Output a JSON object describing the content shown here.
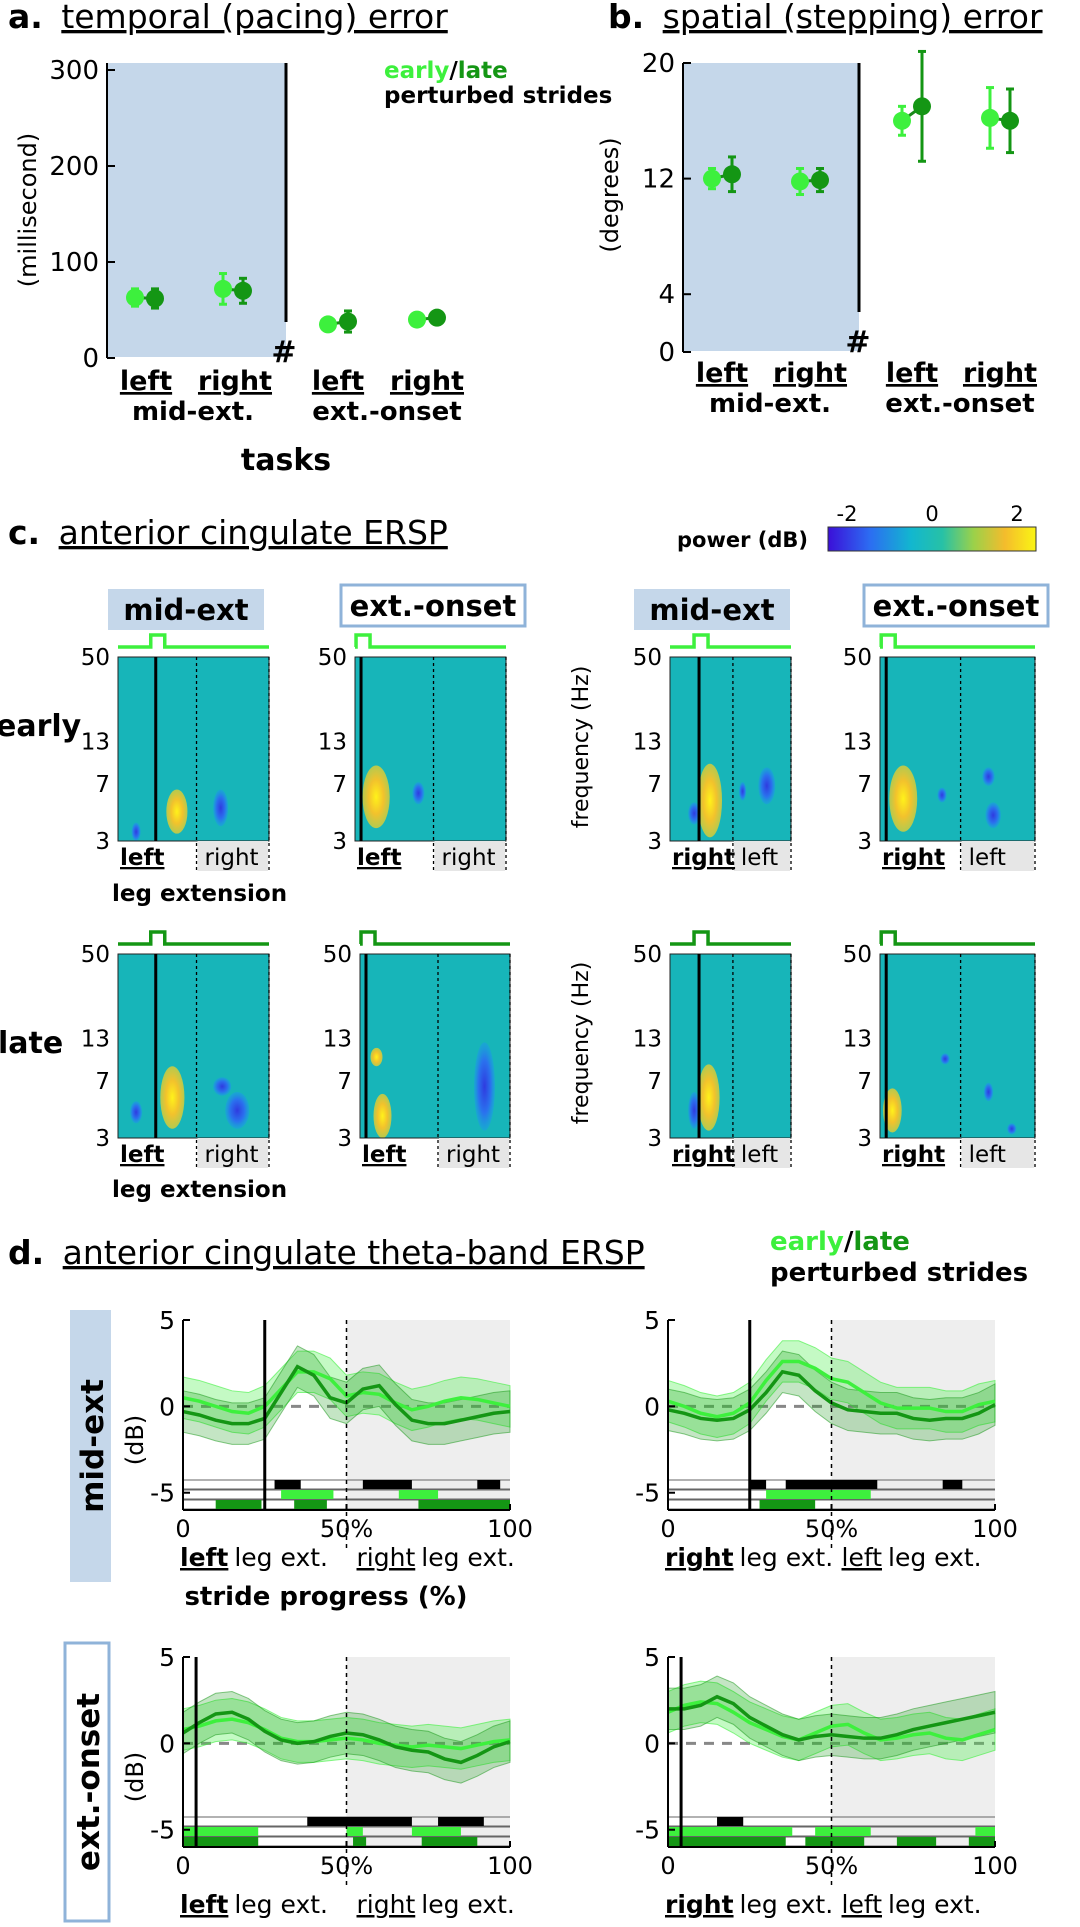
{
  "colors": {
    "early": "#3df03d",
    "late": "#149614",
    "panel_bg": "#c5d7ea",
    "box_border": "#8fb3d9",
    "gray_region": "#ececec",
    "black": "#000000"
  },
  "panel_a": {
    "label": "a.",
    "title": "temporal (pacing) error",
    "ylabel": "(millisecond)",
    "ylim": [
      0,
      300
    ],
    "yticks": [
      "0",
      "100",
      "200",
      "300"
    ],
    "xlabel": "tasks",
    "legend_early": "early",
    "legend_slash": "/",
    "legend_late": "late",
    "legend_sub": "perturbed strides",
    "hash": "#",
    "cond1": "mid-ext.",
    "cond2": "ext.-onset",
    "leg_left": "left",
    "leg_right": "right"
  },
  "panel_b": {
    "label": "b.",
    "title": "spatial (stepping) error",
    "ylabel": "(degrees)",
    "ylim": [
      0,
      20
    ],
    "yticks": [
      "0",
      "4",
      "12",
      "20"
    ],
    "hash": "#",
    "cond1": "mid-ext.",
    "cond2": "ext.-onset",
    "leg_left": "left",
    "leg_right": "right"
  },
  "panel_c": {
    "label": "c.",
    "title": "anterior cingulate ERSP",
    "colorbar_label": "power (dB)",
    "colorbar_ticks": [
      "-2",
      "0",
      "2"
    ],
    "col_mid": "mid-ext",
    "col_ext": "ext.-onset",
    "row_early": "early",
    "row_late": "late",
    "freq_label": "frequency (Hz)",
    "freq_ticks": [
      "50",
      "13",
      "7",
      "3"
    ],
    "left": "left",
    "right": "right",
    "leg_extension": "leg extension"
  },
  "panel_d": {
    "label": "d.",
    "title": "anterior cingulate theta-band ERSP",
    "legend_early": "early",
    "legend_slash": "/",
    "legend_late": "late",
    "legend_sub": "perturbed strides",
    "row_mid": "mid-ext",
    "row_ext": "ext.-onset",
    "ylabel": "(dB)",
    "yticks": [
      "5",
      "0",
      "-5"
    ],
    "xticks": [
      "0",
      "50%",
      "100"
    ],
    "xlabel": "stride progress (%)",
    "left": "left",
    "right": "right",
    "leg_ext": "leg ext."
  },
  "chart_data": [
    {
      "type": "scatter",
      "panel": "a",
      "title": "temporal (pacing) error",
      "ylabel": "(millisecond)",
      "xlabel": "tasks",
      "ylim": [
        0,
        300
      ],
      "categories": [
        "left mid-ext.",
        "right mid-ext.",
        "left ext.-onset",
        "right ext.-onset"
      ],
      "series": [
        {
          "name": "early",
          "values": [
            63,
            72,
            35,
            40
          ],
          "errors": [
            9,
            16,
            6,
            4
          ]
        },
        {
          "name": "late",
          "values": [
            62,
            70,
            38,
            42
          ],
          "errors": [
            10,
            13,
            11,
            5
          ]
        }
      ]
    },
    {
      "type": "scatter",
      "panel": "b",
      "title": "spatial (stepping) error",
      "ylabel": "(degrees)",
      "ylim": [
        0,
        20
      ],
      "categories": [
        "left mid-ext.",
        "right mid-ext.",
        "left ext.-onset",
        "right ext.-onset"
      ],
      "series": [
        {
          "name": "early",
          "values": [
            12.0,
            11.8,
            16.0,
            16.2
          ],
          "errors": [
            0.7,
            0.9,
            1.0,
            2.1
          ]
        },
        {
          "name": "late",
          "values": [
            12.3,
            11.9,
            17.0,
            16.0
          ],
          "errors": [
            1.2,
            0.8,
            3.8,
            2.2
          ]
        }
      ]
    },
    {
      "type": "heatmap",
      "panel": "c",
      "title": "anterior cingulate ERSP",
      "colorbar_range": [
        -2.5,
        2.5
      ],
      "frequency_ticks_hz": [
        3,
        7,
        13,
        50
      ]
    },
    {
      "type": "line",
      "panel": "d",
      "title": "anterior cingulate theta-band ERSP",
      "xlabel": "stride progress (%)",
      "ylabel": "(dB)",
      "ylim": [
        -6,
        5
      ],
      "x": [
        0,
        5,
        10,
        15,
        20,
        25,
        30,
        35,
        40,
        45,
        50,
        55,
        60,
        65,
        70,
        75,
        80,
        85,
        90,
        95,
        100
      ],
      "subplots": [
        {
          "row": "mid-ext",
          "side": "left",
          "event_x": 25,
          "early": [
            0.5,
            0.3,
            0.0,
            -0.3,
            -0.4,
            0.0,
            1.0,
            2.0,
            2.0,
            1.6,
            0.6,
            0.8,
            0.7,
            0.2,
            -0.2,
            0.0,
            0.3,
            0.5,
            0.4,
            0.2,
            0.0
          ],
          "late": [
            -0.3,
            -0.5,
            -0.8,
            -1.0,
            -1.0,
            -0.7,
            0.8,
            2.3,
            1.8,
            0.5,
            0.2,
            1.0,
            1.2,
            0.1,
            -0.8,
            -1.0,
            -1.0,
            -0.8,
            -0.6,
            -0.4,
            -0.3
          ],
          "sig_early": [
            [
              30,
              46
            ],
            [
              66,
              78
            ]
          ],
          "sig_late": [
            [
              10,
              24
            ],
            [
              34,
              44
            ],
            [
              72,
              100
            ]
          ],
          "sig_diff": [
            [
              28,
              36
            ],
            [
              55,
              70
            ],
            [
              90,
              97
            ]
          ]
        },
        {
          "row": "mid-ext",
          "side": "right",
          "event_x": 25,
          "early": [
            0.3,
            0.0,
            -0.4,
            -0.6,
            -0.4,
            0.2,
            1.5,
            2.6,
            2.6,
            2.2,
            1.6,
            1.4,
            0.8,
            0.2,
            -0.1,
            -0.1,
            -0.1,
            -0.3,
            -0.3,
            0.1,
            0.3
          ],
          "late": [
            -0.2,
            -0.4,
            -0.7,
            -0.8,
            -0.7,
            -0.2,
            0.8,
            2.0,
            1.8,
            0.9,
            0.2,
            -0.2,
            -0.3,
            -0.4,
            -0.4,
            -0.7,
            -0.8,
            -0.7,
            -0.7,
            -0.4,
            0.1
          ],
          "sig_early": [
            [
              30,
              62
            ]
          ],
          "sig_late": [
            [
              28,
              45
            ]
          ],
          "sig_diff": [
            [
              25,
              30
            ],
            [
              36,
              64
            ],
            [
              84,
              90
            ]
          ]
        },
        {
          "row": "ext.-onset",
          "side": "left",
          "event_x": 4,
          "early": [
            0.8,
            1.0,
            1.3,
            1.4,
            1.2,
            0.8,
            0.3,
            0.1,
            0.1,
            0.2,
            0.3,
            0.2,
            0.0,
            -0.1,
            -0.2,
            -0.1,
            -0.2,
            -0.3,
            -0.1,
            0.1,
            0.2
          ],
          "late": [
            0.6,
            1.2,
            1.7,
            1.8,
            1.4,
            0.7,
            0.2,
            0.0,
            0.1,
            0.4,
            0.6,
            0.5,
            0.2,
            -0.2,
            -0.4,
            -0.5,
            -0.9,
            -1.1,
            -0.7,
            -0.2,
            0.1
          ],
          "sig_early": [
            [
              0,
              23
            ],
            [
              50,
              55
            ],
            [
              70,
              85
            ]
          ],
          "sig_late": [
            [
              0,
              23
            ],
            [
              52,
              56
            ],
            [
              73,
              90
            ]
          ],
          "sig_diff": [
            [
              38,
              70
            ],
            [
              78,
              92
            ]
          ]
        },
        {
          "row": "ext.-onset",
          "side": "right",
          "event_x": 4,
          "early": [
            1.8,
            2.2,
            2.4,
            2.3,
            1.8,
            1.2,
            0.8,
            0.4,
            0.2,
            0.6,
            1.0,
            1.1,
            0.6,
            0.2,
            0.3,
            0.5,
            0.6,
            0.3,
            0.2,
            0.5,
            0.8
          ],
          "late": [
            2.0,
            2.0,
            2.2,
            2.7,
            2.3,
            1.5,
            1.0,
            0.5,
            0.2,
            0.4,
            0.5,
            0.4,
            0.3,
            0.3,
            0.5,
            0.8,
            1.0,
            1.2,
            1.4,
            1.6,
            1.8
          ],
          "sig_early": [
            [
              0,
              38
            ],
            [
              45,
              62
            ],
            [
              94,
              100
            ]
          ],
          "sig_late": [
            [
              0,
              36
            ],
            [
              42,
              60
            ],
            [
              70,
              82
            ],
            [
              92,
              100
            ]
          ],
          "sig_diff": [
            [
              15,
              23
            ]
          ]
        }
      ]
    }
  ]
}
